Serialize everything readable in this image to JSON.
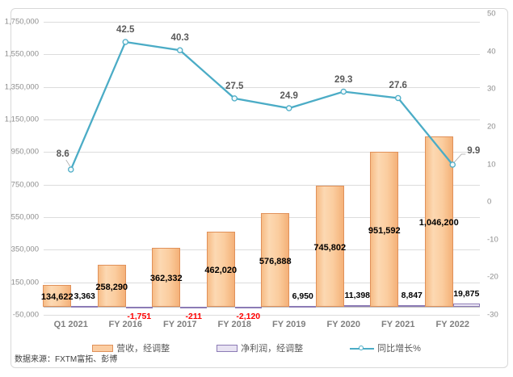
{
  "chart_data": {
    "type": "combo-bar-line",
    "categories": [
      "Q1 2021",
      "FY 2016",
      "FY 2017",
      "FY 2018",
      "FY 2019",
      "FY 2020",
      "FY 2021",
      "FY 2022"
    ],
    "series": [
      {
        "name": "营收，经调整",
        "type": "bar",
        "axis": "left",
        "values": [
          134622,
          258290,
          362332,
          462020,
          576888,
          745802,
          951592,
          1046200
        ],
        "labels": [
          "134,622",
          "258,290",
          "362,332",
          "462,020",
          "576,888",
          "745,802",
          "951,592",
          "1,046,200"
        ]
      },
      {
        "name": "净利润，经调整",
        "type": "bar",
        "axis": "left",
        "values": [
          3363,
          -1751,
          -211,
          -2120,
          6950,
          11398,
          8847,
          19875
        ],
        "labels": [
          "3,363",
          "-1,751",
          "-211",
          "-2,120",
          "6,950",
          "11,398",
          "8,847",
          "19,875"
        ]
      },
      {
        "name": "同比增长%",
        "type": "line",
        "axis": "right",
        "values": [
          8.6,
          42.5,
          40.3,
          27.5,
          24.9,
          29.3,
          27.6,
          9.9
        ],
        "labels": [
          "8.6",
          "42.5",
          "40.3",
          "27.5",
          "24.9",
          "29.3",
          "27.6",
          "9.9"
        ]
      }
    ],
    "left_axis": {
      "min": -50000,
      "max": 1750000,
      "step": 200000,
      "tick_labels": [
        "1,750,000",
        "1,550,000",
        "1,350,000",
        "1,150,000",
        "950,000",
        "750,000",
        "550,000",
        "350,000",
        "150,000",
        "-50,000"
      ]
    },
    "right_axis": {
      "min": -30,
      "max": 50,
      "step": 10,
      "tick_labels": [
        "50",
        "40",
        "30",
        "20",
        "10",
        "0",
        "-10",
        "-20",
        "-30"
      ]
    },
    "grid": true,
    "legend_position": "bottom"
  },
  "legend": {
    "items": [
      {
        "label": "营收，经调整",
        "swatch": "bar-orange-swatch"
      },
      {
        "label": "净利润，经调整",
        "swatch": "bar-purple-swatch"
      },
      {
        "label": "同比增长%",
        "swatch": "line-teal-swatch"
      }
    ]
  },
  "source_note": "数据来源：FXTM富拓、彭博",
  "colors": {
    "bar_fill": "#FBCDA2",
    "bar_border": "#E0915A",
    "net_fill": "#E8E3F2",
    "net_border": "#8C7BB5",
    "line": "#4BACC6",
    "marker_fill": "#F2F9FB",
    "grid": "#DCDCDC",
    "axis_line": "#BDBDBD",
    "tick_label": "#8C8C8C",
    "category_label": "#7F7F7F",
    "line_label": "#595959",
    "negative_label": "#FF0000",
    "value_label": "#000000",
    "leader_line": "#A6A6A6"
  }
}
